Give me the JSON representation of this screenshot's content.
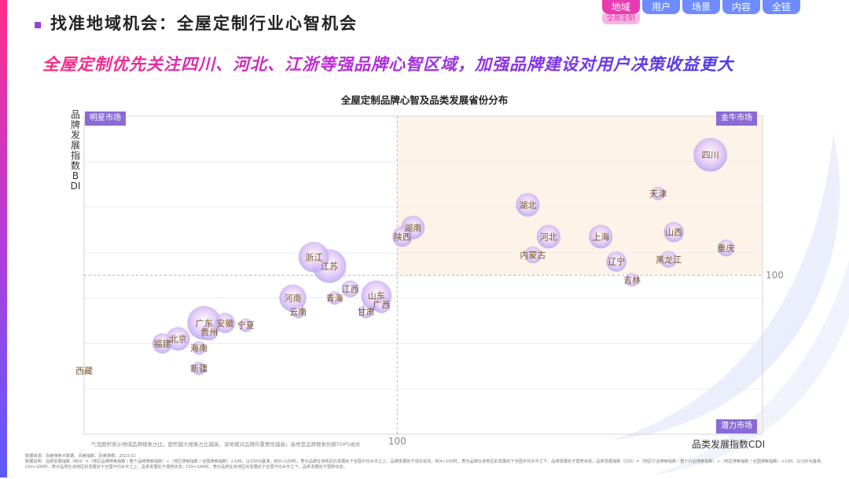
{
  "header": {
    "title": "找准地域机会：全屋定制行业心智机会"
  },
  "tabs": [
    {
      "label": "地域",
      "sub": "全屋定制"
    },
    {
      "label": "用户"
    },
    {
      "label": "场景"
    },
    {
      "label": "内容"
    },
    {
      "label": "全链"
    }
  ],
  "headline": "全屋定制优先关注四川、河北、江浙等强品牌心智区域，加强品牌建设对用户决策收益更大",
  "quadrants": {
    "top_left": "明星市场",
    "top_right": "金牛市场",
    "bottom_right": "潜力市场"
  },
  "note": "气泡面积表示地域品牌搜索占比，面积越大搜索占比越高，该地域对品牌的重要性越高；高亮是品牌搜索份额TOP5省份",
  "footer": {
    "source": "数据来源：百度搜索大数据、百度指数、百度慧眼，2023.02",
    "explanation": "数据说明：品牌发展指数（BDI）=（地区品牌搜索指数 / 整个品牌搜索指数）÷（地区搜索指数 / 全国搜索指数）×100，以100为基准，BDI>100时，表示品牌在该地区的发展处于全国平均水平之上，品牌发展处于领先状态；BDI<100时，表示品牌在该地区的发展处于全国平均水平之下，品牌发展处于弱势状态；品类发展指数（CDI）=（地区行业搜索指数 / 整个行业搜索指数）÷（地区搜索指数 / 全国搜索指数）×100，以100为基准，CDI>100时，表示品类在该地区的发展处于全国平均水平之上，品类发展处于强势状态；CDI<100时，表示品类在该地区的发展处于全国平均水平之下，品类发展处于弱势状态。"
  },
  "colors": {
    "bubble_edge": "#a8a0f0",
    "bubble_center": "#ffffff",
    "bubble_top": "#e2c6f6",
    "label": "#7a5a2a",
    "quadrant_fill": "#fdf3e8",
    "quadrant_badge": "#8a6ad6"
  },
  "chart_data": {
    "type": "scatter",
    "title": "全屋定制品牌心智及品类发展省份分布",
    "xlabel": "品类发展指数CDI",
    "ylabel": "品牌发展指数BDI",
    "x_reference": 100,
    "y_reference": 100,
    "x_tick_labels": [
      "100"
    ],
    "y_tick_labels": [
      "100"
    ],
    "xlim": [
      40,
      170
    ],
    "ylim": [
      30,
      170
    ],
    "points": [
      {
        "name": "四川",
        "x": 160,
        "y": 153,
        "size": 5
      },
      {
        "name": "天津",
        "x": 150,
        "y": 136,
        "size": 2
      },
      {
        "name": "湖北",
        "x": 125,
        "y": 131,
        "size": 3.5
      },
      {
        "name": "湖南",
        "x": 103,
        "y": 121,
        "size": 3.5
      },
      {
        "name": "陕西",
        "x": 101,
        "y": 117,
        "size": 3
      },
      {
        "name": "河北",
        "x": 129,
        "y": 117,
        "size": 3.5
      },
      {
        "name": "上海",
        "x": 139,
        "y": 117,
        "size": 3.5
      },
      {
        "name": "山西",
        "x": 153,
        "y": 119,
        "size": 3
      },
      {
        "name": "内蒙古",
        "x": 126,
        "y": 109,
        "size": 2.5
      },
      {
        "name": "重庆",
        "x": 163,
        "y": 112,
        "size": 2.5
      },
      {
        "name": "辽宁",
        "x": 142,
        "y": 106,
        "size": 3
      },
      {
        "name": "黑龙江",
        "x": 152,
        "y": 107,
        "size": 2.5
      },
      {
        "name": "吉林",
        "x": 145,
        "y": 98,
        "size": 2
      },
      {
        "name": "浙江",
        "x": 84,
        "y": 108,
        "size": 4.5
      },
      {
        "name": "江苏",
        "x": 87,
        "y": 104,
        "size": 5
      },
      {
        "name": "江西",
        "x": 91,
        "y": 94,
        "size": 2.5
      },
      {
        "name": "河南",
        "x": 80,
        "y": 90,
        "size": 4
      },
      {
        "name": "青海",
        "x": 88,
        "y": 90,
        "size": 2
      },
      {
        "name": "山东",
        "x": 96,
        "y": 91,
        "size": 4.5
      },
      {
        "name": "广西",
        "x": 97,
        "y": 87,
        "size": 2.5
      },
      {
        "name": "云南",
        "x": 81,
        "y": 84,
        "size": 2
      },
      {
        "name": "甘肃",
        "x": 94,
        "y": 84,
        "size": 2
      },
      {
        "name": "广东",
        "x": 63,
        "y": 79,
        "size": 5
      },
      {
        "name": "安徽",
        "x": 67,
        "y": 79,
        "size": 3
      },
      {
        "name": "贵州",
        "x": 64,
        "y": 75,
        "size": 2.5
      },
      {
        "name": "宁夏",
        "x": 71,
        "y": 78,
        "size": 2
      },
      {
        "name": "北京",
        "x": 58,
        "y": 72,
        "size": 3.5
      },
      {
        "name": "福建",
        "x": 55,
        "y": 70,
        "size": 3
      },
      {
        "name": "海南",
        "x": 62,
        "y": 68,
        "size": 2
      },
      {
        "name": "新疆",
        "x": 62,
        "y": 59,
        "size": 2
      },
      {
        "name": "西藏",
        "x": 40,
        "y": 58,
        "size": 0
      }
    ]
  }
}
